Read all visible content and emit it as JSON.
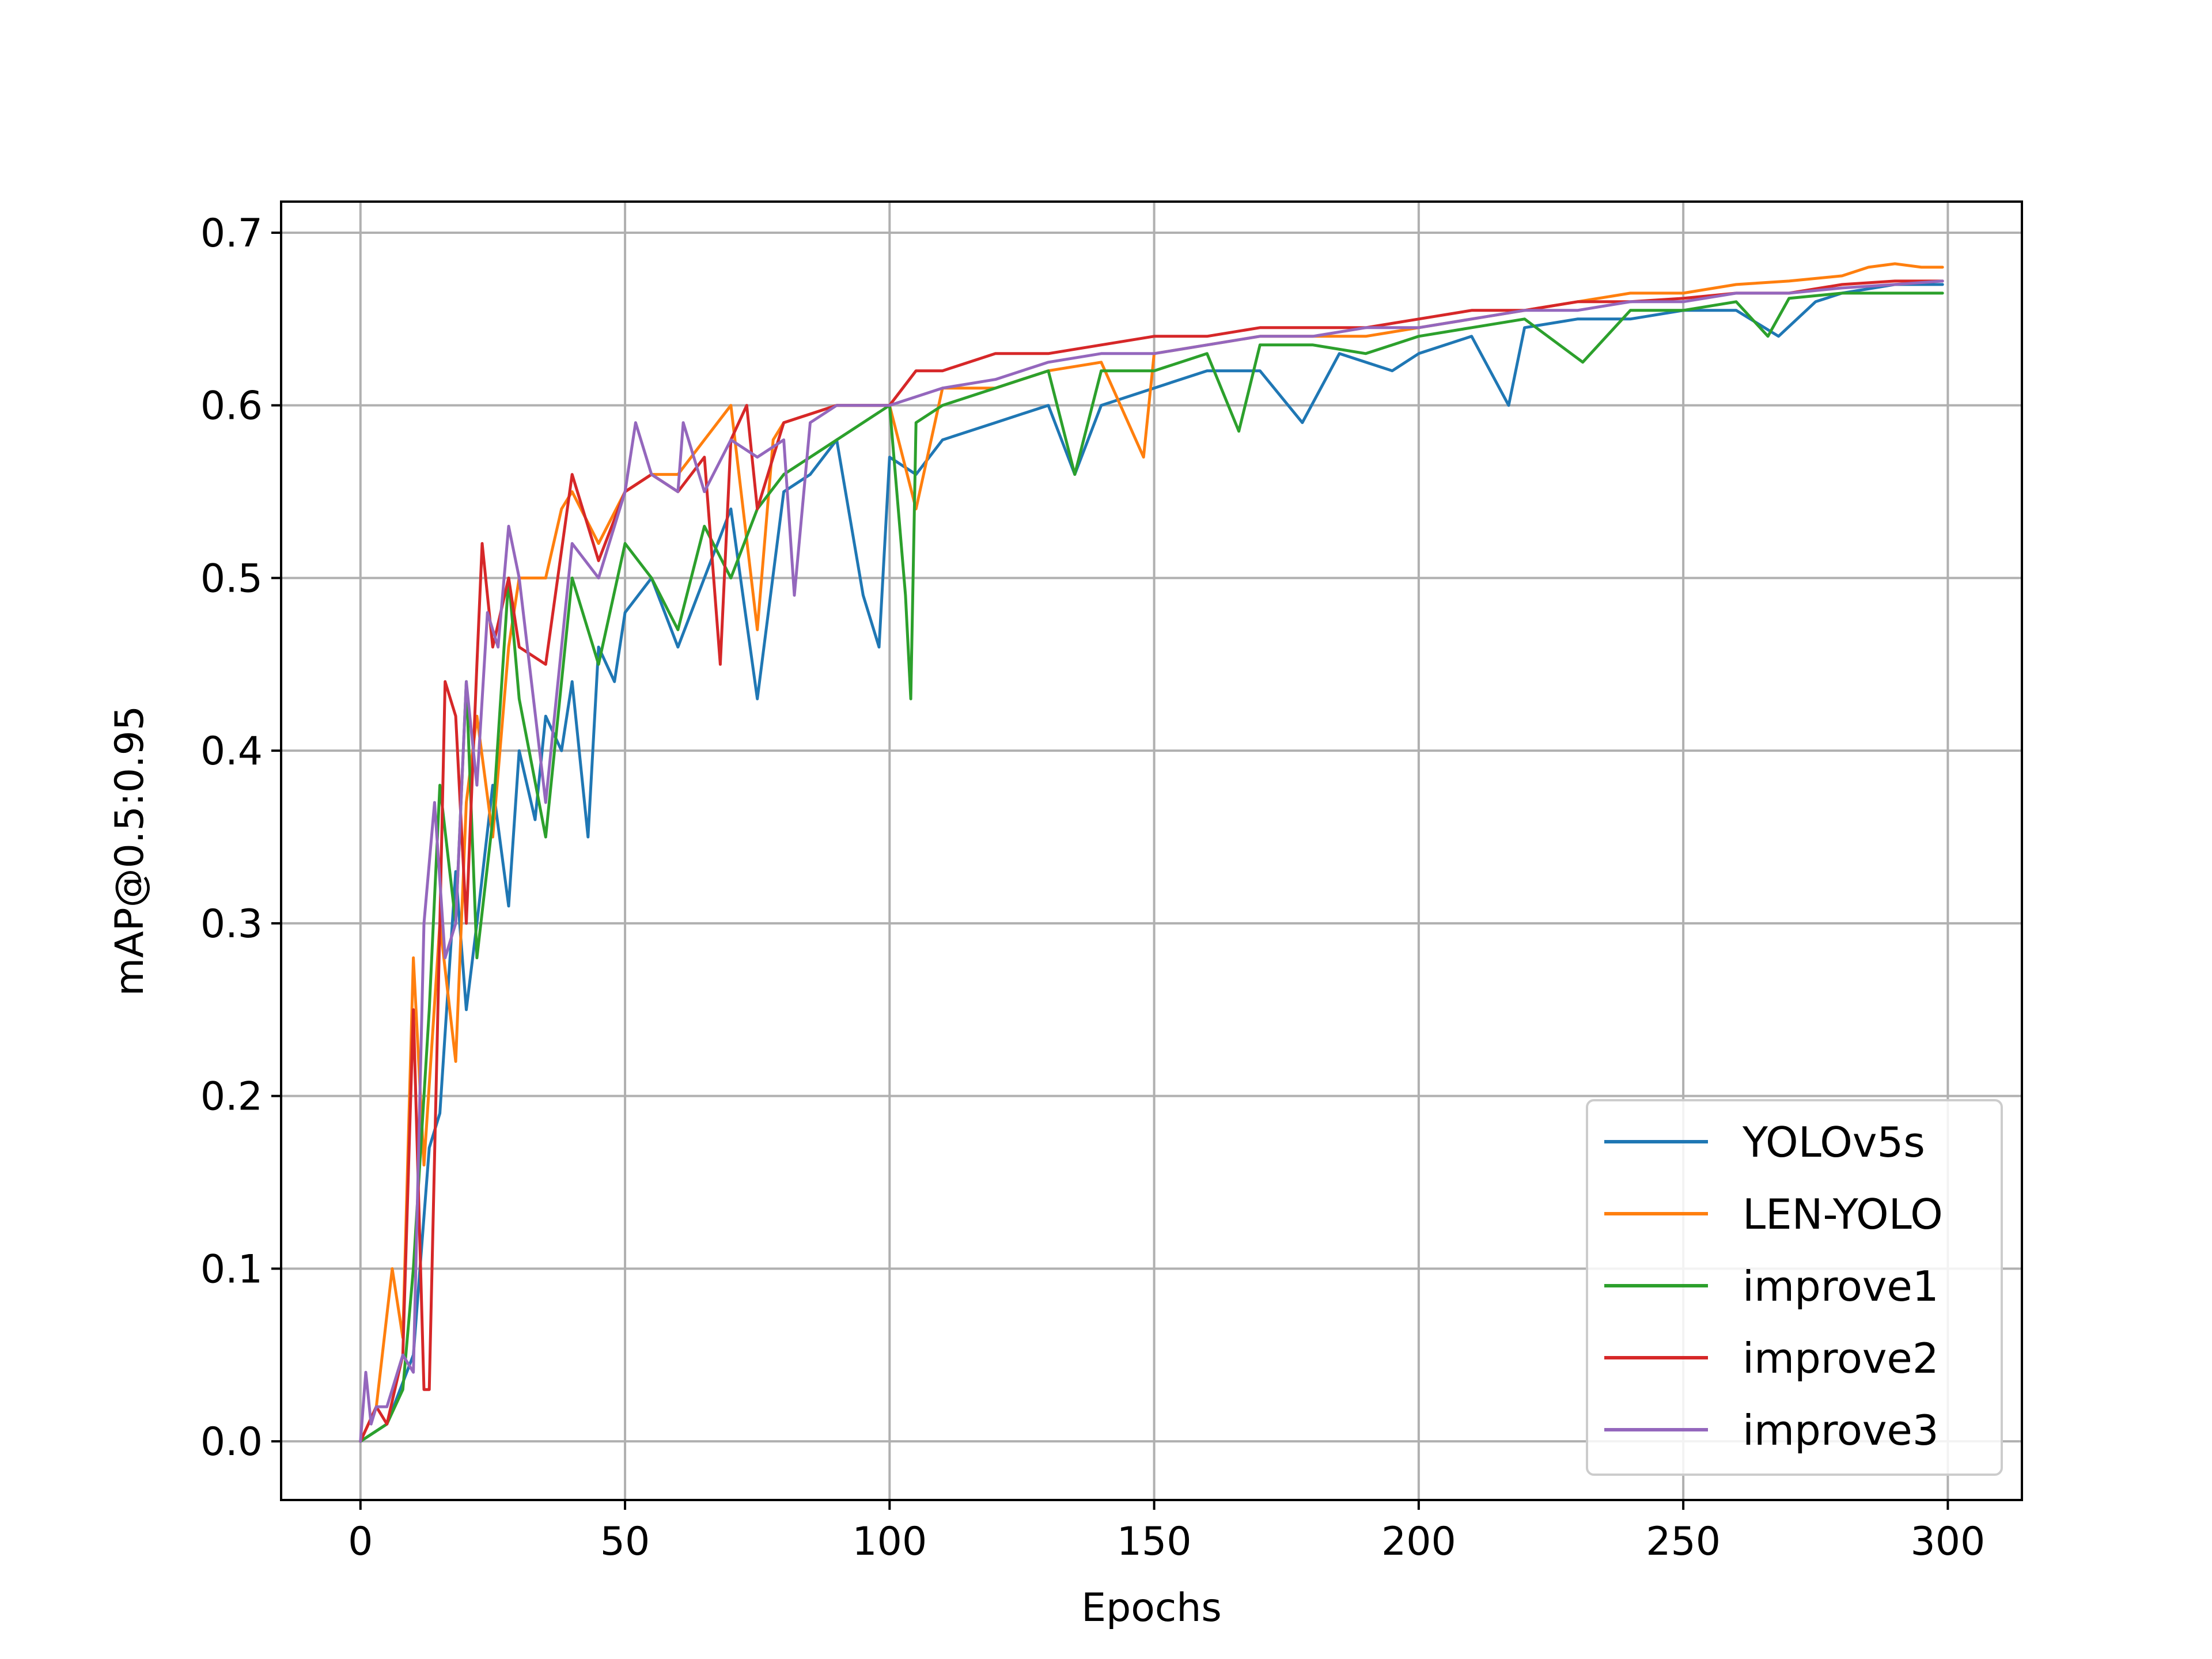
{
  "chart_data": {
    "type": "line",
    "title": "",
    "xlabel": "Epochs",
    "ylabel": "mAP@0.5:0.95",
    "xlim": [
      -15,
      314
    ],
    "ylim": [
      -0.034,
      0.718
    ],
    "xticks": [
      0,
      50,
      100,
      150,
      200,
      250,
      300
    ],
    "yticks": [
      0.0,
      0.1,
      0.2,
      0.3,
      0.4,
      0.5,
      0.6,
      0.7
    ],
    "xtick_labels": [
      "0",
      "50",
      "100",
      "150",
      "200",
      "250",
      "300"
    ],
    "ytick_labels": [
      "0.0",
      "0.1",
      "0.2",
      "0.3",
      "0.4",
      "0.5",
      "0.6",
      "0.7"
    ],
    "grid": true,
    "legend_position": "lower-right",
    "series": [
      {
        "name": "YOLOv5s",
        "color": "#1f77b4",
        "x": [
          0,
          5,
          10,
          13,
          15,
          18,
          20,
          22,
          25,
          28,
          30,
          33,
          35,
          38,
          40,
          43,
          45,
          48,
          50,
          55,
          60,
          65,
          70,
          75,
          80,
          85,
          90,
          95,
          98,
          100,
          105,
          110,
          120,
          130,
          135,
          140,
          150,
          160,
          170,
          178,
          185,
          195,
          200,
          210,
          217,
          220,
          230,
          240,
          250,
          260,
          268,
          275,
          280,
          290,
          299
        ],
        "y": [
          0.0,
          0.01,
          0.05,
          0.17,
          0.19,
          0.33,
          0.25,
          0.3,
          0.38,
          0.31,
          0.4,
          0.36,
          0.42,
          0.4,
          0.44,
          0.35,
          0.46,
          0.44,
          0.48,
          0.5,
          0.46,
          0.5,
          0.54,
          0.43,
          0.55,
          0.56,
          0.58,
          0.49,
          0.46,
          0.57,
          0.56,
          0.58,
          0.59,
          0.6,
          0.56,
          0.6,
          0.61,
          0.62,
          0.62,
          0.59,
          0.63,
          0.62,
          0.63,
          0.64,
          0.6,
          0.645,
          0.65,
          0.65,
          0.655,
          0.655,
          0.64,
          0.66,
          0.665,
          0.67,
          0.67
        ]
      },
      {
        "name": "LEN-YOLO",
        "color": "#ff7f0e",
        "x": [
          0,
          3,
          6,
          8,
          10,
          12,
          15,
          18,
          20,
          22,
          25,
          28,
          30,
          35,
          38,
          40,
          45,
          50,
          55,
          60,
          65,
          70,
          75,
          78,
          80,
          90,
          100,
          105,
          110,
          120,
          130,
          140,
          148,
          150,
          160,
          170,
          180,
          190,
          200,
          210,
          220,
          230,
          240,
          250,
          260,
          270,
          280,
          285,
          290,
          295,
          299
        ],
        "y": [
          0.0,
          0.02,
          0.1,
          0.06,
          0.28,
          0.16,
          0.3,
          0.22,
          0.37,
          0.42,
          0.35,
          0.46,
          0.5,
          0.5,
          0.54,
          0.55,
          0.52,
          0.55,
          0.56,
          0.56,
          0.58,
          0.6,
          0.47,
          0.58,
          0.59,
          0.6,
          0.6,
          0.54,
          0.61,
          0.61,
          0.62,
          0.625,
          0.57,
          0.63,
          0.635,
          0.64,
          0.64,
          0.64,
          0.645,
          0.65,
          0.655,
          0.66,
          0.665,
          0.665,
          0.67,
          0.672,
          0.675,
          0.68,
          0.682,
          0.68,
          0.68
        ]
      },
      {
        "name": "improve1",
        "color": "#2ca02c",
        "x": [
          0,
          5,
          8,
          10,
          13,
          15,
          18,
          20,
          22,
          25,
          28,
          30,
          35,
          40,
          45,
          50,
          55,
          60,
          65,
          70,
          75,
          80,
          90,
          100,
          103,
          104,
          105,
          110,
          120,
          130,
          135,
          140,
          150,
          160,
          166,
          170,
          180,
          190,
          200,
          210,
          220,
          231,
          240,
          250,
          260,
          266,
          270,
          280,
          290,
          299
        ],
        "y": [
          0.0,
          0.01,
          0.03,
          0.1,
          0.25,
          0.38,
          0.3,
          0.44,
          0.28,
          0.36,
          0.5,
          0.43,
          0.35,
          0.5,
          0.45,
          0.52,
          0.5,
          0.47,
          0.53,
          0.5,
          0.54,
          0.56,
          0.58,
          0.6,
          0.49,
          0.43,
          0.59,
          0.6,
          0.61,
          0.62,
          0.56,
          0.62,
          0.62,
          0.63,
          0.585,
          0.635,
          0.635,
          0.63,
          0.64,
          0.645,
          0.65,
          0.625,
          0.655,
          0.655,
          0.66,
          0.64,
          0.662,
          0.665,
          0.665,
          0.665
        ]
      },
      {
        "name": "improve2",
        "color": "#d62728",
        "x": [
          0,
          3,
          5,
          8,
          10,
          12,
          13,
          15,
          16,
          18,
          20,
          22,
          23,
          25,
          28,
          30,
          35,
          40,
          45,
          50,
          55,
          60,
          65,
          68,
          70,
          73,
          75,
          80,
          90,
          100,
          105,
          110,
          120,
          130,
          140,
          150,
          160,
          170,
          180,
          190,
          200,
          210,
          220,
          230,
          240,
          250,
          260,
          270,
          280,
          290,
          299
        ],
        "y": [
          0.0,
          0.02,
          0.01,
          0.05,
          0.25,
          0.03,
          0.03,
          0.3,
          0.44,
          0.42,
          0.3,
          0.45,
          0.52,
          0.46,
          0.5,
          0.46,
          0.45,
          0.56,
          0.51,
          0.55,
          0.56,
          0.55,
          0.57,
          0.45,
          0.58,
          0.6,
          0.54,
          0.59,
          0.6,
          0.6,
          0.62,
          0.62,
          0.63,
          0.63,
          0.635,
          0.64,
          0.64,
          0.645,
          0.645,
          0.645,
          0.65,
          0.655,
          0.655,
          0.66,
          0.66,
          0.662,
          0.665,
          0.665,
          0.67,
          0.672,
          0.672
        ]
      },
      {
        "name": "improve3",
        "color": "#9467bd",
        "x": [
          0,
          1,
          2,
          3,
          5,
          8,
          10,
          12,
          14,
          16,
          18,
          20,
          22,
          24,
          26,
          28,
          30,
          35,
          40,
          45,
          50,
          52,
          55,
          60,
          61,
          65,
          70,
          75,
          80,
          82,
          85,
          90,
          100,
          110,
          120,
          130,
          140,
          150,
          160,
          170,
          180,
          190,
          200,
          210,
          220,
          230,
          240,
          250,
          260,
          270,
          280,
          290,
          299
        ],
        "y": [
          0.0,
          0.04,
          0.01,
          0.02,
          0.02,
          0.05,
          0.04,
          0.3,
          0.37,
          0.28,
          0.3,
          0.44,
          0.38,
          0.48,
          0.46,
          0.53,
          0.5,
          0.37,
          0.52,
          0.5,
          0.55,
          0.59,
          0.56,
          0.55,
          0.59,
          0.55,
          0.58,
          0.57,
          0.58,
          0.49,
          0.59,
          0.6,
          0.6,
          0.61,
          0.615,
          0.625,
          0.63,
          0.63,
          0.635,
          0.64,
          0.64,
          0.645,
          0.645,
          0.65,
          0.655,
          0.655,
          0.66,
          0.66,
          0.665,
          0.665,
          0.668,
          0.67,
          0.672
        ]
      }
    ]
  }
}
